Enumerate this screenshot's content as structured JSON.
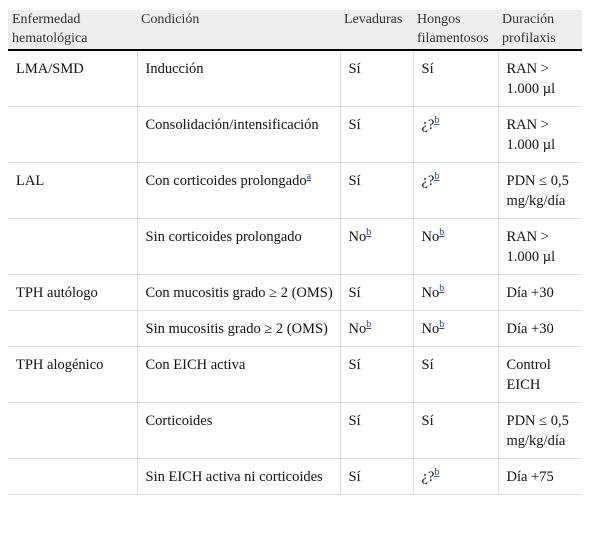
{
  "table": {
    "header": [
      "Enfermedad hematológica",
      "Condición",
      "Levaduras",
      "Hongos filamentosos",
      "Duración profilaxis"
    ],
    "rows": [
      {
        "group": "LMA/SMD",
        "cells": [
          {
            "text": "Inducción"
          },
          {
            "text": "Sí"
          },
          {
            "text": "Sí"
          },
          {
            "text": "RAN > 1.000 µl"
          }
        ]
      },
      {
        "cells": [
          {
            "text": "Consolidación/intensificación"
          },
          {
            "text": "Sí"
          },
          {
            "text": "¿?",
            "note": "b"
          },
          {
            "text": "RAN > 1.000 µl"
          }
        ]
      },
      {
        "group": "LAL",
        "cells": [
          {
            "text": "Con corticoides prolongado",
            "note": "a"
          },
          {
            "text": "Sí"
          },
          {
            "text": "¿?",
            "note": "b"
          },
          {
            "text": "PDN ≤ 0,5 mg/kg/día"
          }
        ]
      },
      {
        "cells": [
          {
            "text": "Sin corticoides prolongado"
          },
          {
            "text": "No",
            "note": "b"
          },
          {
            "text": "No",
            "note": "b"
          },
          {
            "text": "RAN > 1.000 µl"
          }
        ]
      },
      {
        "group": "TPH autólogo",
        "cells": [
          {
            "text": "Con mucositis grado ≥ 2 (OMS)"
          },
          {
            "text": "Sí"
          },
          {
            "text": "No",
            "note": "b"
          },
          {
            "text": "Día +30"
          }
        ]
      },
      {
        "cells": [
          {
            "text": "Sin mucositis grado ≥ 2 (OMS)"
          },
          {
            "text": "No",
            "note": "b"
          },
          {
            "text": "No",
            "note": "b"
          },
          {
            "text": "Día +30"
          }
        ]
      },
      {
        "group": "TPH alogénico",
        "cells": [
          {
            "text": "Con EICH activa"
          },
          {
            "text": "Sí"
          },
          {
            "text": "Sí"
          },
          {
            "text": "Control EICH"
          }
        ]
      },
      {
        "cells": [
          {
            "text": "Corticoides"
          },
          {
            "text": "Sí"
          },
          {
            "text": "Sí"
          },
          {
            "text": "PDN ≤ 0,5 mg/kg/día"
          }
        ]
      },
      {
        "cells": [
          {
            "text": "Sin EICH activa ni corticoides"
          },
          {
            "text": "Sí"
          },
          {
            "text": "¿?",
            "note": "b"
          },
          {
            "text": "Día +75"
          }
        ]
      }
    ]
  }
}
